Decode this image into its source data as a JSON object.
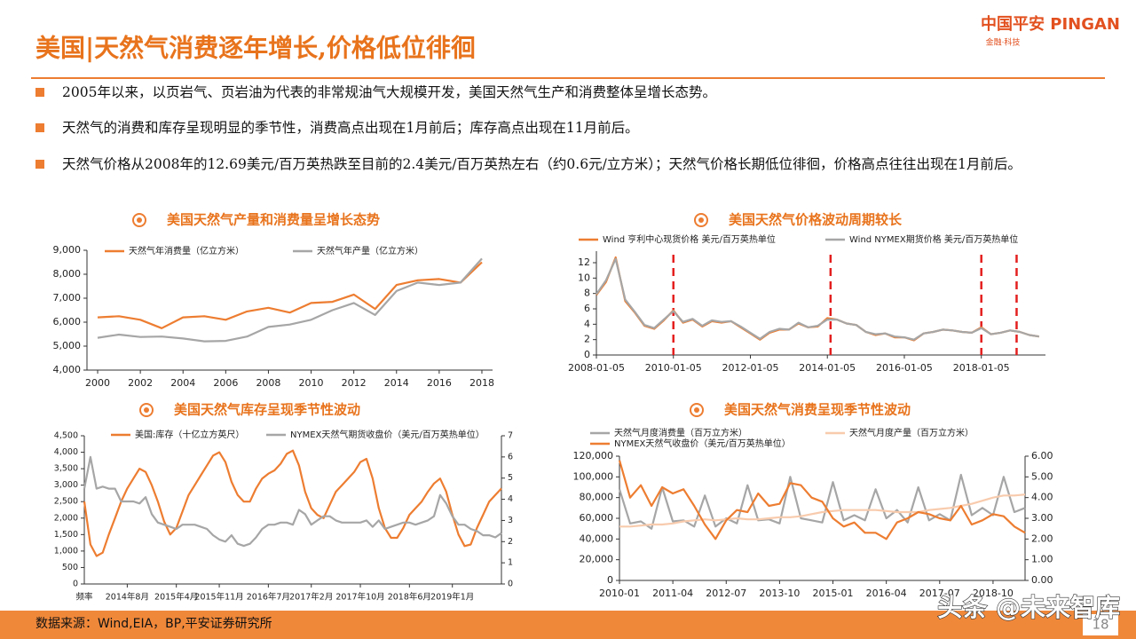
{
  "header": {
    "title": "美国|天然气消费逐年增长,价格低位徘徊",
    "logo": "中国平安 PINGAN",
    "logo_sub": "金融·科技"
  },
  "bullets": [
    "2005年以来，以页岩气、页岩油为代表的非常规油气大规模开发，美国天然气生产和消费整体呈增长态势。",
    "天然气的消费和库存呈现明显的季节性，消费高点出现在1月前后；库存高点出现在11月前后。",
    "天然气价格从2008年的12.69美元/百万英热跌至目前的2.4美元/百万英热左右（约0.6元/立方米）；天然气价格长期低位徘徊，价格高点往往出现在1月前后。"
  ],
  "chart_data": [
    {
      "type": "line",
      "title": "美国天然气产量和消费量呈增长态势",
      "x": [
        2000,
        2001,
        2002,
        2003,
        2004,
        2005,
        2006,
        2007,
        2008,
        2009,
        2010,
        2011,
        2012,
        2013,
        2014,
        2015,
        2016,
        2017,
        2018
      ],
      "xlim": [
        1999.5,
        2018.5
      ],
      "xticks": [
        2000,
        2002,
        2004,
        2006,
        2008,
        2010,
        2012,
        2014,
        2016,
        2018
      ],
      "ylim": [
        4000,
        9000
      ],
      "yticks": [
        {
          "value": 4000,
          "label": "4,000"
        },
        {
          "value": 5000,
          "label": "5,000"
        },
        {
          "value": 6000,
          "label": "6,000"
        },
        {
          "value": 7000,
          "label": "7,000"
        },
        {
          "value": 8000,
          "label": "8,000"
        },
        {
          "value": 9000,
          "label": "9,000"
        }
      ],
      "series": [
        {
          "name": "天然气年消费量（亿立方米）",
          "color": "#ed7d31",
          "values": [
            6200,
            6250,
            6100,
            5750,
            6200,
            6250,
            6100,
            6450,
            6600,
            6400,
            6800,
            6850,
            7150,
            6550,
            7550,
            7750,
            7800,
            7650,
            8500
          ]
        },
        {
          "name": "天然气年产量（亿立方米）",
          "color": "#a6a6a6",
          "values": [
            5350,
            5480,
            5380,
            5400,
            5320,
            5200,
            5220,
            5400,
            5800,
            5900,
            6100,
            6500,
            6800,
            6300,
            7300,
            7650,
            7550,
            7650,
            8650
          ]
        }
      ]
    },
    {
      "type": "line",
      "title": "美国天然气价格波动周期较长",
      "x": [
        "2008-01-05",
        "2008-04-05",
        "2008-07-05",
        "2008-10-05",
        "2009-01-05",
        "2009-04-05",
        "2009-07-05",
        "2009-10-05",
        "2010-01-05",
        "2010-04-05",
        "2010-07-05",
        "2010-10-05",
        "2011-01-05",
        "2011-04-05",
        "2011-07-05",
        "2011-10-05",
        "2012-01-05",
        "2012-04-05",
        "2012-07-05",
        "2012-10-05",
        "2013-01-05",
        "2013-04-05",
        "2013-07-05",
        "2013-10-05",
        "2014-01-05",
        "2014-04-05",
        "2014-07-05",
        "2014-10-05",
        "2015-01-05",
        "2015-04-05",
        "2015-07-05",
        "2015-10-05",
        "2016-01-05",
        "2016-04-05",
        "2016-07-05",
        "2016-10-05",
        "2017-01-05",
        "2017-04-05",
        "2017-07-05",
        "2017-10-05",
        "2018-01-05",
        "2018-04-05",
        "2018-07-05",
        "2018-10-05",
        "2019-01-05",
        "2019-04-05",
        "2019-07-05"
      ],
      "xlim": [
        "2008-01-05",
        "2019-09-05"
      ],
      "xticks": [
        "2008-01-05",
        "2010-01-05",
        "2012-01-05",
        "2014-01-05",
        "2016-01-05",
        "2018-01-05"
      ],
      "ylim": [
        0,
        13.5
      ],
      "yticks": [
        0,
        2,
        4,
        6,
        8,
        10,
        12
      ],
      "series": [
        {
          "name": "Wind 亨利中心现货价格 美元/百万英热单位",
          "color": "#ed7d31",
          "values": [
            7.8,
            9.5,
            12.69,
            7.0,
            5.5,
            3.8,
            3.4,
            4.5,
            5.8,
            4.2,
            4.6,
            3.7,
            4.4,
            4.2,
            4.4,
            3.6,
            2.8,
            2.0,
            2.9,
            3.3,
            3.3,
            4.1,
            3.6,
            3.7,
            4.8,
            4.6,
            4.1,
            3.9,
            3.0,
            2.6,
            2.8,
            2.3,
            2.3,
            1.9,
            2.8,
            3.0,
            3.3,
            3.2,
            3.0,
            2.9,
            3.6,
            2.7,
            2.9,
            3.2,
            3.0,
            2.6,
            2.4
          ]
        },
        {
          "name": "Wind NYMEX期货价格 美元/百万英热单位",
          "color": "#a6a6a6",
          "values": [
            7.9,
            9.7,
            12.5,
            7.2,
            5.6,
            3.9,
            3.5,
            4.6,
            5.7,
            4.3,
            4.7,
            3.8,
            4.5,
            4.3,
            4.4,
            3.7,
            2.9,
            2.1,
            3.0,
            3.4,
            3.3,
            4.2,
            3.6,
            3.8,
            4.6,
            4.6,
            4.1,
            3.9,
            3.0,
            2.7,
            2.8,
            2.4,
            2.3,
            2.0,
            2.8,
            3.0,
            3.3,
            3.2,
            3.0,
            2.9,
            3.5,
            2.7,
            2.9,
            3.2,
            3.0,
            2.6,
            2.4
          ]
        }
      ],
      "markers": {
        "color": "#e41f1f",
        "x": [
          "2010-01-05",
          "2014-02-05",
          "2018-01-05",
          "2018-12-05"
        ]
      }
    },
    {
      "type": "line",
      "title": "美国天然气库存呈现季节性波动",
      "xlabel": "频率",
      "x": [
        "2014年1月",
        "2014年2月",
        "2014年3月",
        "2014年4月",
        "2014年5月",
        "2014年6月",
        "2014年7月",
        "2014年8月",
        "2014年9月",
        "2014年10月",
        "2014年11月",
        "2014年12月",
        "2015年1月",
        "2015年2月",
        "2015年3月",
        "2015年4月",
        "2015年5月",
        "2015年6月",
        "2015年7月",
        "2015年8月",
        "2015年9月",
        "2015年10月",
        "2015年11月",
        "2015年12月",
        "2016年1月",
        "2016年2月",
        "2016年3月",
        "2016年4月",
        "2016年5月",
        "2016年6月",
        "2016年7月",
        "2016年8月",
        "2016年9月",
        "2016年10月",
        "2016年11月",
        "2016年12月",
        "2017年1月",
        "2017年2月",
        "2017年3月",
        "2017年4月",
        "2017年5月",
        "2017年6月",
        "2017年7月",
        "2017年8月",
        "2017年9月",
        "2017年10月",
        "2017年11月",
        "2017年12月",
        "2018年1月",
        "2018年2月",
        "2018年3月",
        "2018年4月",
        "2018年5月",
        "2018年6月",
        "2018年7月",
        "2018年8月",
        "2018年9月",
        "2018年10月",
        "2018年11月",
        "2018年12月",
        "2019年1月",
        "2019年2月",
        "2019年3月",
        "2019年4月",
        "2019年5月",
        "2019年6月",
        "2019年7月",
        "2019年8月",
        "2019年9月"
      ],
      "xlim": [
        "2014年1月",
        "2019年9月"
      ],
      "xticks": [
        "2014年8月",
        "2015年4月",
        "2015年11月",
        "2016年7月",
        "2017年2月",
        "2017年10月",
        "2018年6月",
        "2019年1月"
      ],
      "ylim": [
        0,
        4500
      ],
      "yticks": [
        0,
        500,
        {
          "value": 1000,
          "label": "1,000"
        },
        {
          "value": 1500,
          "label": "1,500"
        },
        {
          "value": 2000,
          "label": "2,000"
        },
        {
          "value": 2500,
          "label": "2,500"
        },
        {
          "value": 3000,
          "label": "3,000"
        },
        {
          "value": 3500,
          "label": "3,500"
        },
        {
          "value": 4000,
          "label": "4,000"
        },
        {
          "value": 4500,
          "label": "4,500"
        }
      ],
      "y2lim": [
        0,
        7
      ],
      "y2ticks": [
        0,
        1,
        2,
        3,
        4,
        5,
        6,
        7
      ],
      "series": [
        {
          "name": "美国:库存（十亿立方英尺）",
          "color": "#ed7d31",
          "values": [
            2500,
            1200,
            850,
            950,
            1500,
            2000,
            2500,
            2900,
            3200,
            3500,
            3400,
            3000,
            2500,
            1900,
            1500,
            1700,
            2200,
            2700,
            3000,
            3300,
            3600,
            3900,
            4000,
            3700,
            3100,
            2700,
            2500,
            2500,
            2900,
            3200,
            3350,
            3450,
            3650,
            3950,
            4050,
            3600,
            2800,
            2300,
            2100,
            2000,
            2400,
            2800,
            3000,
            3200,
            3400,
            3700,
            3800,
            3200,
            2300,
            1700,
            1400,
            1400,
            1700,
            2100,
            2300,
            2500,
            2800,
            3050,
            3200,
            2800,
            2100,
            1500,
            1150,
            1200,
            1700,
            2100,
            2500,
            2700,
            2900
          ]
        },
        {
          "name": "NYMEX天然气期货收盘价（美元/百万英热单位）",
          "color": "#a6a6a6",
          "axis": "y2",
          "values": [
            4.5,
            6.0,
            4.5,
            4.6,
            4.5,
            4.5,
            3.9,
            3.9,
            3.9,
            3.8,
            4.1,
            3.3,
            2.9,
            2.8,
            2.7,
            2.6,
            2.8,
            2.8,
            2.8,
            2.7,
            2.6,
            2.3,
            2.1,
            2.0,
            2.3,
            1.9,
            1.8,
            1.9,
            2.2,
            2.6,
            2.8,
            2.8,
            2.9,
            2.9,
            2.8,
            3.5,
            3.3,
            2.8,
            3.0,
            3.2,
            3.2,
            3.0,
            2.9,
            2.9,
            2.9,
            2.9,
            3.0,
            2.7,
            3.0,
            2.6,
            2.7,
            2.8,
            2.9,
            2.9,
            2.8,
            2.9,
            3.0,
            3.2,
            4.2,
            3.8,
            3.2,
            2.8,
            2.8,
            2.6,
            2.5,
            2.3,
            2.3,
            2.2,
            2.4
          ]
        }
      ]
    },
    {
      "type": "line",
      "title": "美国天然气消费呈现季节性波动",
      "x": [
        "2010-01",
        "2010-04",
        "2010-07",
        "2010-10",
        "2011-01",
        "2011-04",
        "2011-07",
        "2011-10",
        "2012-01",
        "2012-04",
        "2012-07",
        "2012-10",
        "2013-01",
        "2013-04",
        "2013-07",
        "2013-10",
        "2014-01",
        "2014-04",
        "2014-07",
        "2014-10",
        "2015-01",
        "2015-04",
        "2015-07",
        "2015-10",
        "2016-01",
        "2016-04",
        "2016-07",
        "2016-10",
        "2017-01",
        "2017-04",
        "2017-07",
        "2017-10",
        "2018-01",
        "2018-04",
        "2018-07",
        "2018-10",
        "2019-01",
        "2019-04",
        "2019-07"
      ],
      "xlim": [
        "2010-01",
        "2019-07"
      ],
      "xticks": [
        "2010-01",
        "2011-04",
        "2012-07",
        "2013-10",
        "2015-01",
        "2016-04",
        "2017-07",
        "2018-10"
      ],
      "ylim": [
        0,
        120000
      ],
      "yticks": [
        0,
        {
          "value": 20000,
          "label": "20,000"
        },
        {
          "value": 40000,
          "label": "40,000"
        },
        {
          "value": 60000,
          "label": "60,000"
        },
        {
          "value": 80000,
          "label": "80,000"
        },
        {
          "value": 100000,
          "label": "100,000"
        },
        {
          "value": 120000,
          "label": "120,000"
        }
      ],
      "y2lim": [
        0,
        6
      ],
      "y2ticks": [
        {
          "value": 0,
          "label": "0.00"
        },
        {
          "value": 1,
          "label": "1.00"
        },
        {
          "value": 2,
          "label": "2.00"
        },
        {
          "value": 3,
          "label": "3.00"
        },
        {
          "value": 4,
          "label": "4.00"
        },
        {
          "value": 5,
          "label": "5.00"
        },
        {
          "value": 6,
          "label": "6.00"
        }
      ],
      "series": [
        {
          "name": "天然气月度消费量（百万立方米）",
          "color": "#a6a6a6",
          "values": [
            88000,
            55000,
            57000,
            50000,
            90000,
            57000,
            58000,
            52000,
            82000,
            52000,
            60000,
            55000,
            92000,
            58000,
            59000,
            55000,
            100000,
            60000,
            58000,
            56000,
            95000,
            58000,
            63000,
            58000,
            88000,
            60000,
            68000,
            56000,
            90000,
            58000,
            64000,
            58000,
            102000,
            63000,
            70000,
            63000,
            100000,
            66000,
            70000
          ]
        },
        {
          "name": "天然气月度产量（百万立方米）",
          "color": "#f8cbad",
          "values": [
            52000,
            52000,
            53000,
            54000,
            54000,
            55000,
            57000,
            58000,
            59000,
            58000,
            59000,
            60000,
            59000,
            59000,
            60000,
            61000,
            61000,
            62000,
            64000,
            66000,
            67000,
            68000,
            68000,
            68000,
            68000,
            67000,
            66000,
            66000,
            66000,
            68000,
            69000,
            70000,
            72000,
            74000,
            77000,
            80000,
            82000,
            82000,
            83000
          ]
        },
        {
          "name": "NYMEX天然气收盘价（美元/百万英热单位）",
          "color": "#ed7d31",
          "axis": "y2",
          "values": [
            5.8,
            4.0,
            4.6,
            3.6,
            4.5,
            4.2,
            4.4,
            3.6,
            2.7,
            2.0,
            2.9,
            3.4,
            3.3,
            4.2,
            3.6,
            3.7,
            4.7,
            4.6,
            4.0,
            3.8,
            3.0,
            2.6,
            2.8,
            2.3,
            2.3,
            2.0,
            2.8,
            3.0,
            3.3,
            3.2,
            3.0,
            2.9,
            3.6,
            2.7,
            2.9,
            3.2,
            3.1,
            2.6,
            2.3
          ]
        }
      ]
    }
  ],
  "footer": {
    "source": "数据来源：Wind,EIA，BP,平安证券研究所",
    "page": 18
  },
  "watermark": "头条 @未来智库"
}
